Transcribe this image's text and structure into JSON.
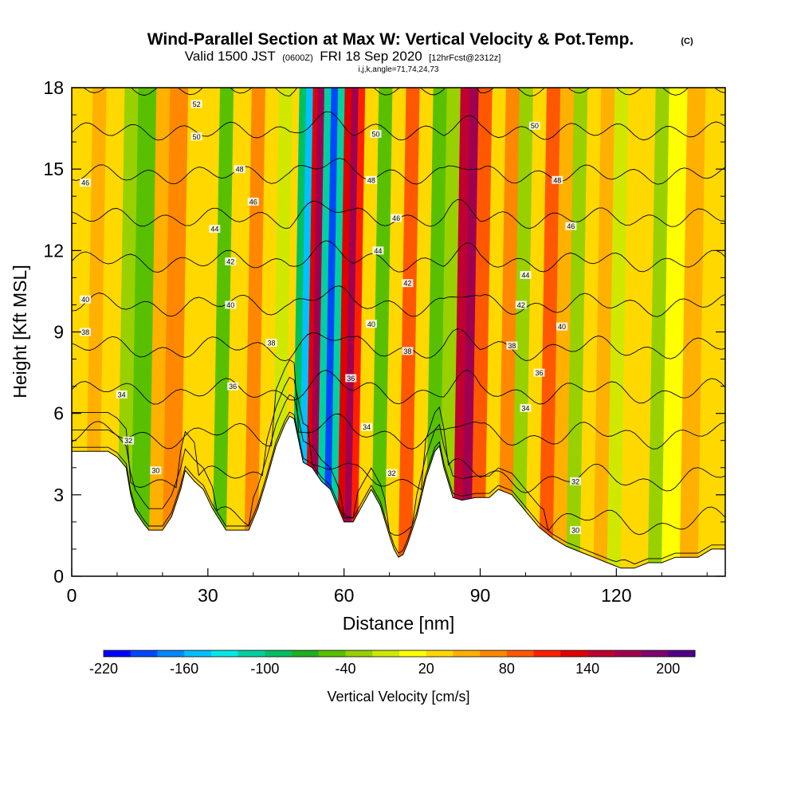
{
  "chart_data": {
    "type": "heatmap",
    "title": "Wind-Parallel Section at Max W: Vertical Velocity & Pot.Temp.",
    "title_suffix": "(C)",
    "subtitle": {
      "prefix": "Valid 1500 JST",
      "utc": "(0600Z)",
      "date": "FRI 18 Sep 2020",
      "forecast": "[12hrFcst@2312z]"
    },
    "subtitle2": "i,j,k,angle=71,74,24,73",
    "xlabel": "Distance [nm]",
    "ylabel": "Height [Kft MSL]",
    "xlim": [
      0,
      144
    ],
    "ylim": [
      0,
      18
    ],
    "xticks": [
      "0",
      "30",
      "60",
      "90",
      "120"
    ],
    "yticks": [
      "0",
      "3",
      "6",
      "9",
      "12",
      "15",
      "18"
    ],
    "colorbar": {
      "title": "Vertical Velocity [cm/s]",
      "min": -220,
      "max": 220,
      "step": 20,
      "labels": [
        "-220",
        "-160",
        "-100",
        "-40",
        "20",
        "80",
        "140",
        "200"
      ],
      "colors": [
        "#0000ff",
        "#0048ff",
        "#0088ff",
        "#00c0ff",
        "#00e8e8",
        "#00d0a0",
        "#00c060",
        "#20b020",
        "#58c000",
        "#98d000",
        "#d0e800",
        "#ffff00",
        "#ffd800",
        "#ffb000",
        "#ff8800",
        "#ff5800",
        "#ff2000",
        "#e00000",
        "#c00030",
        "#a00050",
        "#800070",
        "#500088"
      ]
    },
    "velocity_bands": [
      {
        "x": 0,
        "w": 30
      },
      {
        "x": 3,
        "w": 40
      },
      {
        "x": 6,
        "w": 20
      },
      {
        "x": 10,
        "w": -40
      },
      {
        "x": 13,
        "w": -50
      },
      {
        "x": 17,
        "w": 40
      },
      {
        "x": 20,
        "w": 70
      },
      {
        "x": 24,
        "w": 30
      },
      {
        "x": 27,
        "w": 20
      },
      {
        "x": 31,
        "w": -60
      },
      {
        "x": 34,
        "w": 30
      },
      {
        "x": 38,
        "w": 60
      },
      {
        "x": 41,
        "w": 20
      },
      {
        "x": 44,
        "w": -20
      },
      {
        "x": 47,
        "w": 20
      },
      {
        "x": 48.5,
        "w": -90
      },
      {
        "x": 50,
        "w": -150
      },
      {
        "x": 51.5,
        "w": 120
      },
      {
        "x": 52.5,
        "w": 160
      },
      {
        "x": 54,
        "w": -120
      },
      {
        "x": 55.5,
        "w": -200
      },
      {
        "x": 57,
        "w": -110
      },
      {
        "x": 58.5,
        "w": 130
      },
      {
        "x": 60,
        "w": 170
      },
      {
        "x": 61.5,
        "w": 110
      },
      {
        "x": 63,
        "w": 20
      },
      {
        "x": 66,
        "w": -50
      },
      {
        "x": 69,
        "w": 30
      },
      {
        "x": 72,
        "w": 80
      },
      {
        "x": 75,
        "w": 20
      },
      {
        "x": 78,
        "w": -60
      },
      {
        "x": 81,
        "w": -30
      },
      {
        "x": 84,
        "w": 140
      },
      {
        "x": 86,
        "w": 160
      },
      {
        "x": 88,
        "w": 90
      },
      {
        "x": 91,
        "w": 20
      },
      {
        "x": 94,
        "w": 60
      },
      {
        "x": 97,
        "w": -30
      },
      {
        "x": 100,
        "w": 20
      },
      {
        "x": 103,
        "w": 90
      },
      {
        "x": 106,
        "w": 40
      },
      {
        "x": 109,
        "w": -30
      },
      {
        "x": 112,
        "w": 20
      },
      {
        "x": 115,
        "w": 50
      },
      {
        "x": 118,
        "w": -20
      },
      {
        "x": 121,
        "w": 30
      },
      {
        "x": 124,
        "w": 20
      },
      {
        "x": 127,
        "w": -40
      },
      {
        "x": 130,
        "w": 10
      },
      {
        "x": 134,
        "w": 40
      },
      {
        "x": 138,
        "w": 20
      },
      {
        "x": 141,
        "w": 30
      },
      {
        "x": 144,
        "w": 20
      }
    ],
    "terrain": [
      {
        "x": 0,
        "z": 4.6
      },
      {
        "x": 8,
        "z": 4.6
      },
      {
        "x": 10,
        "z": 4.4
      },
      {
        "x": 12,
        "z": 4.0
      },
      {
        "x": 13,
        "z": 3.0
      },
      {
        "x": 14,
        "z": 2.4
      },
      {
        "x": 16,
        "z": 1.9
      },
      {
        "x": 17,
        "z": 1.7
      },
      {
        "x": 20,
        "z": 1.7
      },
      {
        "x": 22,
        "z": 2.2
      },
      {
        "x": 24,
        "z": 3.2
      },
      {
        "x": 25,
        "z": 3.9
      },
      {
        "x": 27,
        "z": 3.5
      },
      {
        "x": 29,
        "z": 3.2
      },
      {
        "x": 31,
        "z": 2.5
      },
      {
        "x": 34,
        "z": 1.7
      },
      {
        "x": 39,
        "z": 1.7
      },
      {
        "x": 41,
        "z": 2.5
      },
      {
        "x": 43,
        "z": 3.6
      },
      {
        "x": 45,
        "z": 4.8
      },
      {
        "x": 47,
        "z": 5.6
      },
      {
        "x": 48,
        "z": 5.9
      },
      {
        "x": 49,
        "z": 5.8
      },
      {
        "x": 50,
        "z": 5.0
      },
      {
        "x": 51,
        "z": 4.2
      },
      {
        "x": 53,
        "z": 4.0
      },
      {
        "x": 55,
        "z": 3.5
      },
      {
        "x": 57,
        "z": 3.2
      },
      {
        "x": 59,
        "z": 2.4
      },
      {
        "x": 60,
        "z": 2.0
      },
      {
        "x": 62,
        "z": 2.0
      },
      {
        "x": 64,
        "z": 2.6
      },
      {
        "x": 66,
        "z": 3.2
      },
      {
        "x": 68,
        "z": 2.6
      },
      {
        "x": 70,
        "z": 1.5
      },
      {
        "x": 71,
        "z": 1.0
      },
      {
        "x": 72,
        "z": 0.7
      },
      {
        "x": 73,
        "z": 0.8
      },
      {
        "x": 74,
        "z": 1.2
      },
      {
        "x": 76,
        "z": 2.2
      },
      {
        "x": 78,
        "z": 3.6
      },
      {
        "x": 80,
        "z": 4.6
      },
      {
        "x": 81,
        "z": 4.8
      },
      {
        "x": 82,
        "z": 4.0
      },
      {
        "x": 84,
        "z": 2.9
      },
      {
        "x": 86,
        "z": 2.8
      },
      {
        "x": 89,
        "z": 2.9
      },
      {
        "x": 92,
        "z": 2.9
      },
      {
        "x": 94,
        "z": 3.2
      },
      {
        "x": 97,
        "z": 3.0
      },
      {
        "x": 100,
        "z": 2.4
      },
      {
        "x": 103,
        "z": 1.8
      },
      {
        "x": 106,
        "z": 1.4
      },
      {
        "x": 109,
        "z": 1.1
      },
      {
        "x": 112,
        "z": 0.9
      },
      {
        "x": 115,
        "z": 0.7
      },
      {
        "x": 118,
        "z": 0.5
      },
      {
        "x": 121,
        "z": 0.3
      },
      {
        "x": 124,
        "z": 0.3
      },
      {
        "x": 127,
        "z": 0.5
      },
      {
        "x": 130,
        "z": 0.5
      },
      {
        "x": 133,
        "z": 0.7
      },
      {
        "x": 138,
        "z": 0.7
      },
      {
        "x": 141,
        "z": 1.0
      },
      {
        "x": 144,
        "z": 1.0
      }
    ],
    "isotherms": [
      30,
      32,
      34,
      36,
      38,
      40,
      42,
      44,
      46,
      48,
      50,
      52
    ],
    "contour_labels": [
      {
        "x": 27.5,
        "y": 17.4,
        "text": "52"
      },
      {
        "x": 27.5,
        "y": 16.2,
        "text": "50"
      },
      {
        "x": 37,
        "y": 15.0,
        "text": "48"
      },
      {
        "x": 3,
        "y": 14.5,
        "text": "46"
      },
      {
        "x": 40,
        "y": 13.8,
        "text": "46"
      },
      {
        "x": 31.5,
        "y": 12.8,
        "text": "44"
      },
      {
        "x": 35,
        "y": 11.6,
        "text": "42"
      },
      {
        "x": 3,
        "y": 10.2,
        "text": "40"
      },
      {
        "x": 35,
        "y": 10.0,
        "text": "40"
      },
      {
        "x": 3,
        "y": 9.0,
        "text": "38"
      },
      {
        "x": 44,
        "y": 8.6,
        "text": "38"
      },
      {
        "x": 11,
        "y": 6.7,
        "text": "34"
      },
      {
        "x": 35.5,
        "y": 7.0,
        "text": "36"
      },
      {
        "x": 12.5,
        "y": 5.0,
        "text": "32"
      },
      {
        "x": 18.5,
        "y": 3.9,
        "text": "30"
      },
      {
        "x": 67,
        "y": 16.3,
        "text": "50"
      },
      {
        "x": 66,
        "y": 14.6,
        "text": "48"
      },
      {
        "x": 71.5,
        "y": 13.2,
        "text": "46"
      },
      {
        "x": 67.5,
        "y": 12.0,
        "text": "44"
      },
      {
        "x": 74,
        "y": 10.8,
        "text": "42"
      },
      {
        "x": 66,
        "y": 9.3,
        "text": "40"
      },
      {
        "x": 74,
        "y": 8.3,
        "text": "38"
      },
      {
        "x": 61.5,
        "y": 7.3,
        "text": "36"
      },
      {
        "x": 65,
        "y": 5.5,
        "text": "34"
      },
      {
        "x": 70.5,
        "y": 3.8,
        "text": "32"
      },
      {
        "x": 102,
        "y": 16.6,
        "text": "50"
      },
      {
        "x": 107,
        "y": 14.6,
        "text": "48"
      },
      {
        "x": 110,
        "y": 12.9,
        "text": "46"
      },
      {
        "x": 100,
        "y": 11.1,
        "text": "44"
      },
      {
        "x": 99,
        "y": 10.0,
        "text": "42"
      },
      {
        "x": 108,
        "y": 9.2,
        "text": "40"
      },
      {
        "x": 97,
        "y": 8.5,
        "text": "38"
      },
      {
        "x": 103,
        "y": 7.5,
        "text": "36"
      },
      {
        "x": 100,
        "y": 6.2,
        "text": "34"
      },
      {
        "x": 111,
        "y": 3.5,
        "text": "32"
      },
      {
        "x": 111,
        "y": 1.7,
        "text": "30"
      }
    ]
  }
}
